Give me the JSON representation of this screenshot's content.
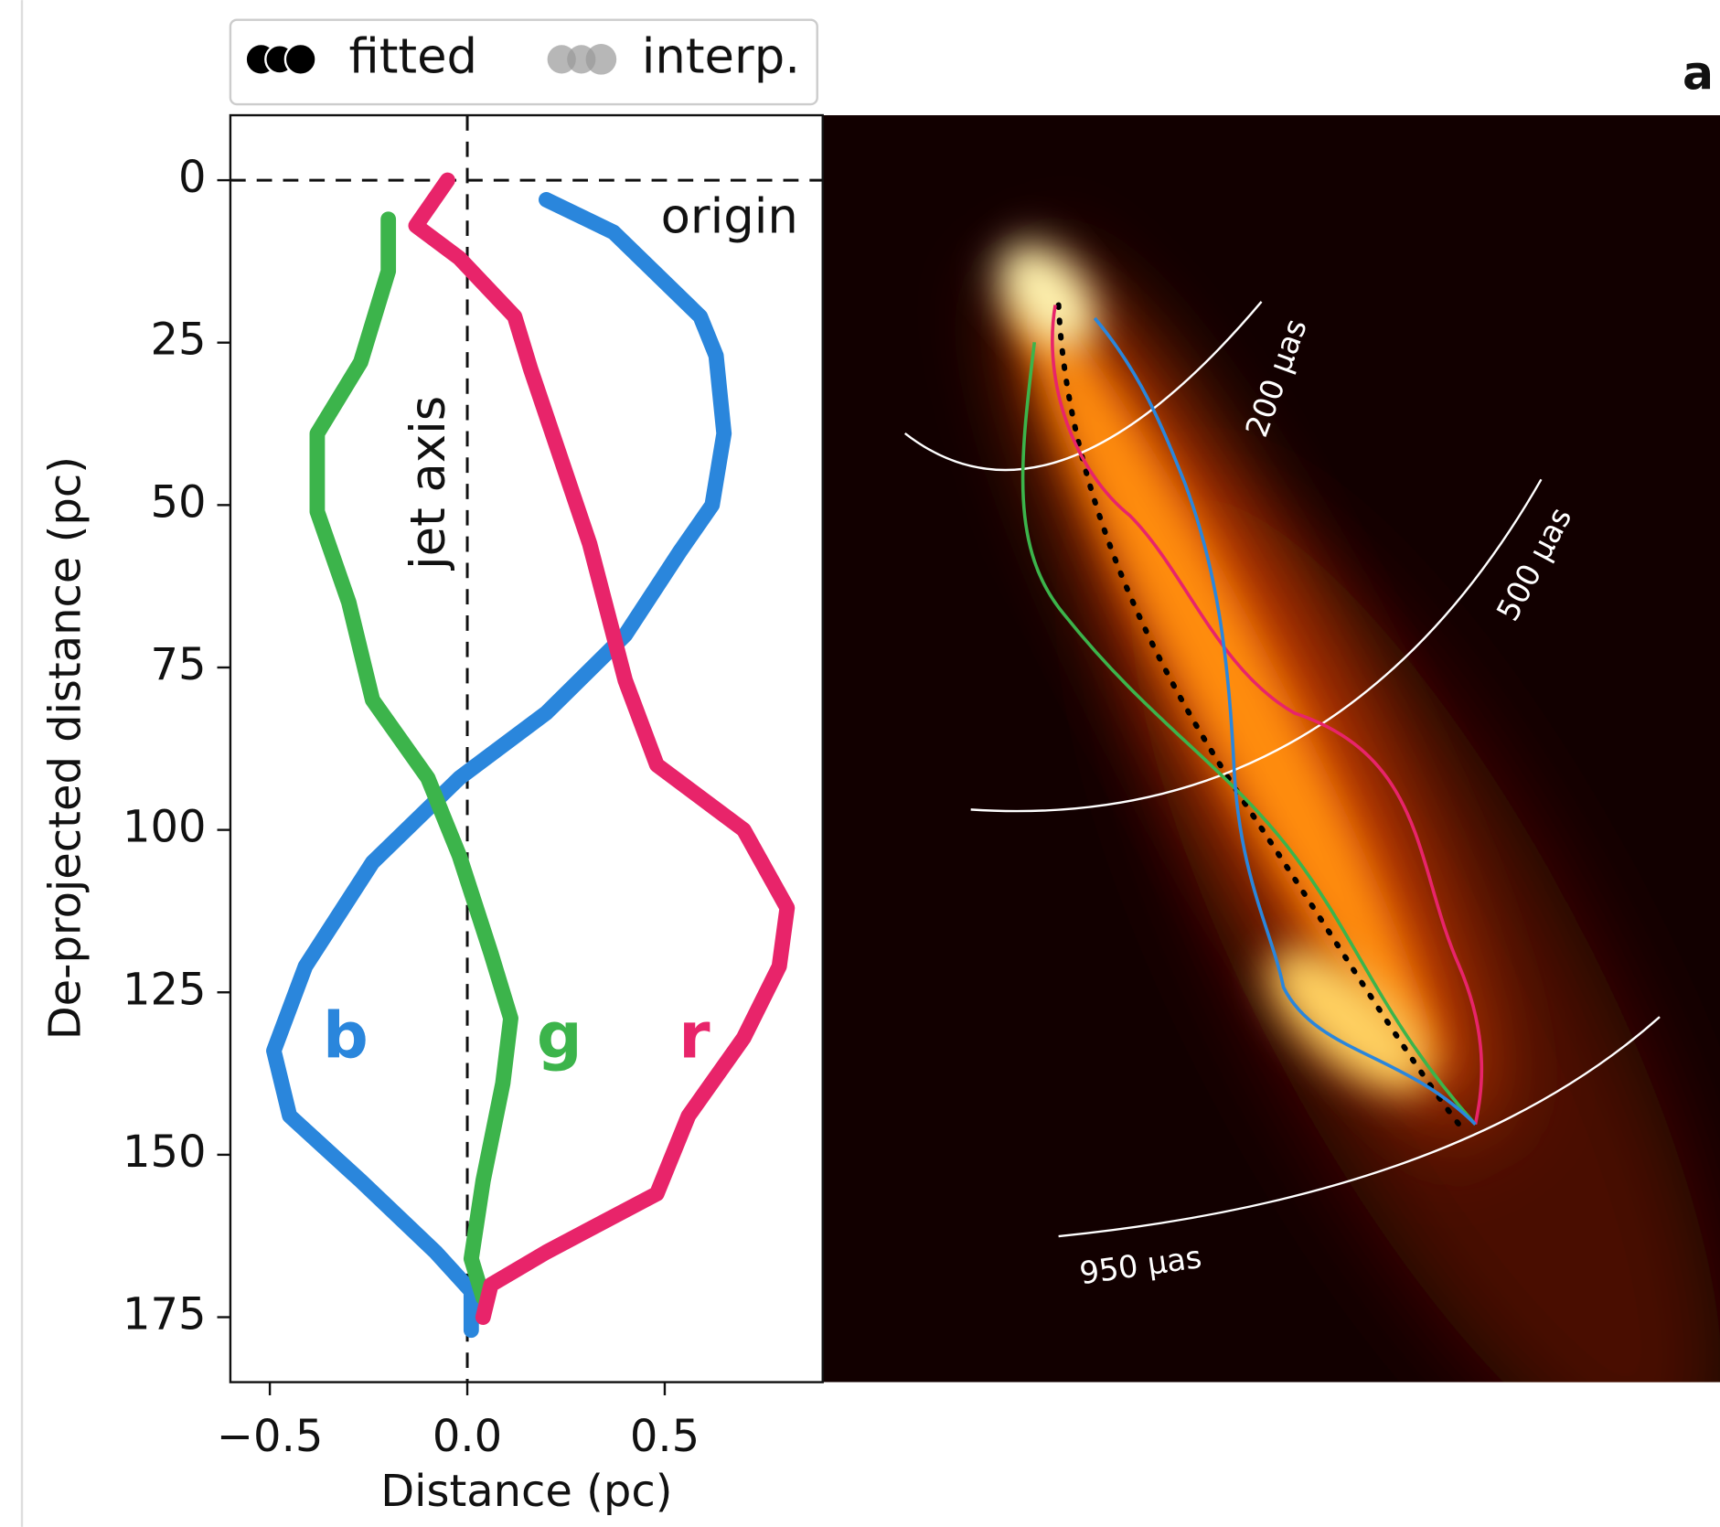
{
  "chart_data": {
    "type": "line",
    "panel_label": "a",
    "xlabel": "Distance (pc)",
    "ylabel": "De-projected distance (pc)",
    "xlim": [
      -0.6,
      0.9
    ],
    "ylim": [
      185,
      -10
    ],
    "xticks": [
      {
        "value": -0.5,
        "label": "−0.5"
      },
      {
        "value": 0,
        "label": "0.0"
      },
      0.5
    ],
    "yticks": [
      0,
      25,
      50,
      75,
      100,
      125,
      150,
      175
    ],
    "x_ref": 0,
    "y_ref": 0,
    "x_ref_label": "jet axis",
    "y_ref_label": "origin",
    "legend": [
      "fitted",
      "interp."
    ],
    "series": [
      {
        "name": "b",
        "color": "#2a86dc",
        "x": [
          0.2,
          0.37,
          0.59,
          0.63,
          0.65,
          0.62,
          0.54,
          0.4,
          0.2,
          -0.02,
          -0.24,
          -0.41,
          -0.49,
          -0.45,
          -0.27,
          -0.08,
          0.01,
          0.01
        ],
        "values": [
          3,
          8,
          21,
          27,
          39,
          50,
          57,
          70,
          82,
          92,
          105,
          121,
          134,
          144,
          154,
          165,
          171,
          177
        ]
      },
      {
        "name": "g",
        "color": "#3cb44b",
        "x": [
          -0.2,
          -0.2,
          -0.27,
          -0.38,
          -0.38,
          -0.3,
          -0.24,
          -0.1,
          -0.02,
          0.06,
          0.11,
          0.09,
          0.04,
          0.01,
          0.04
        ],
        "values": [
          6,
          14,
          28,
          39,
          51,
          65,
          80,
          92,
          104,
          119,
          129,
          139,
          154,
          166,
          172
        ]
      },
      {
        "name": "r",
        "color": "#e8246a",
        "x": [
          -0.05,
          -0.13,
          -0.02,
          0.12,
          0.16,
          0.31,
          0.4,
          0.48,
          0.7,
          0.81,
          0.79,
          0.7,
          0.56,
          0.48,
          0.2,
          0.06,
          0.04
        ],
        "values": [
          0,
          7,
          12,
          21,
          29,
          56,
          77,
          90,
          100,
          112,
          121,
          132,
          144,
          156,
          165,
          170,
          175
        ]
      }
    ]
  },
  "image_panel": {
    "arc_labels": [
      "200 μas",
      "500 μas",
      "950 μas"
    ]
  }
}
